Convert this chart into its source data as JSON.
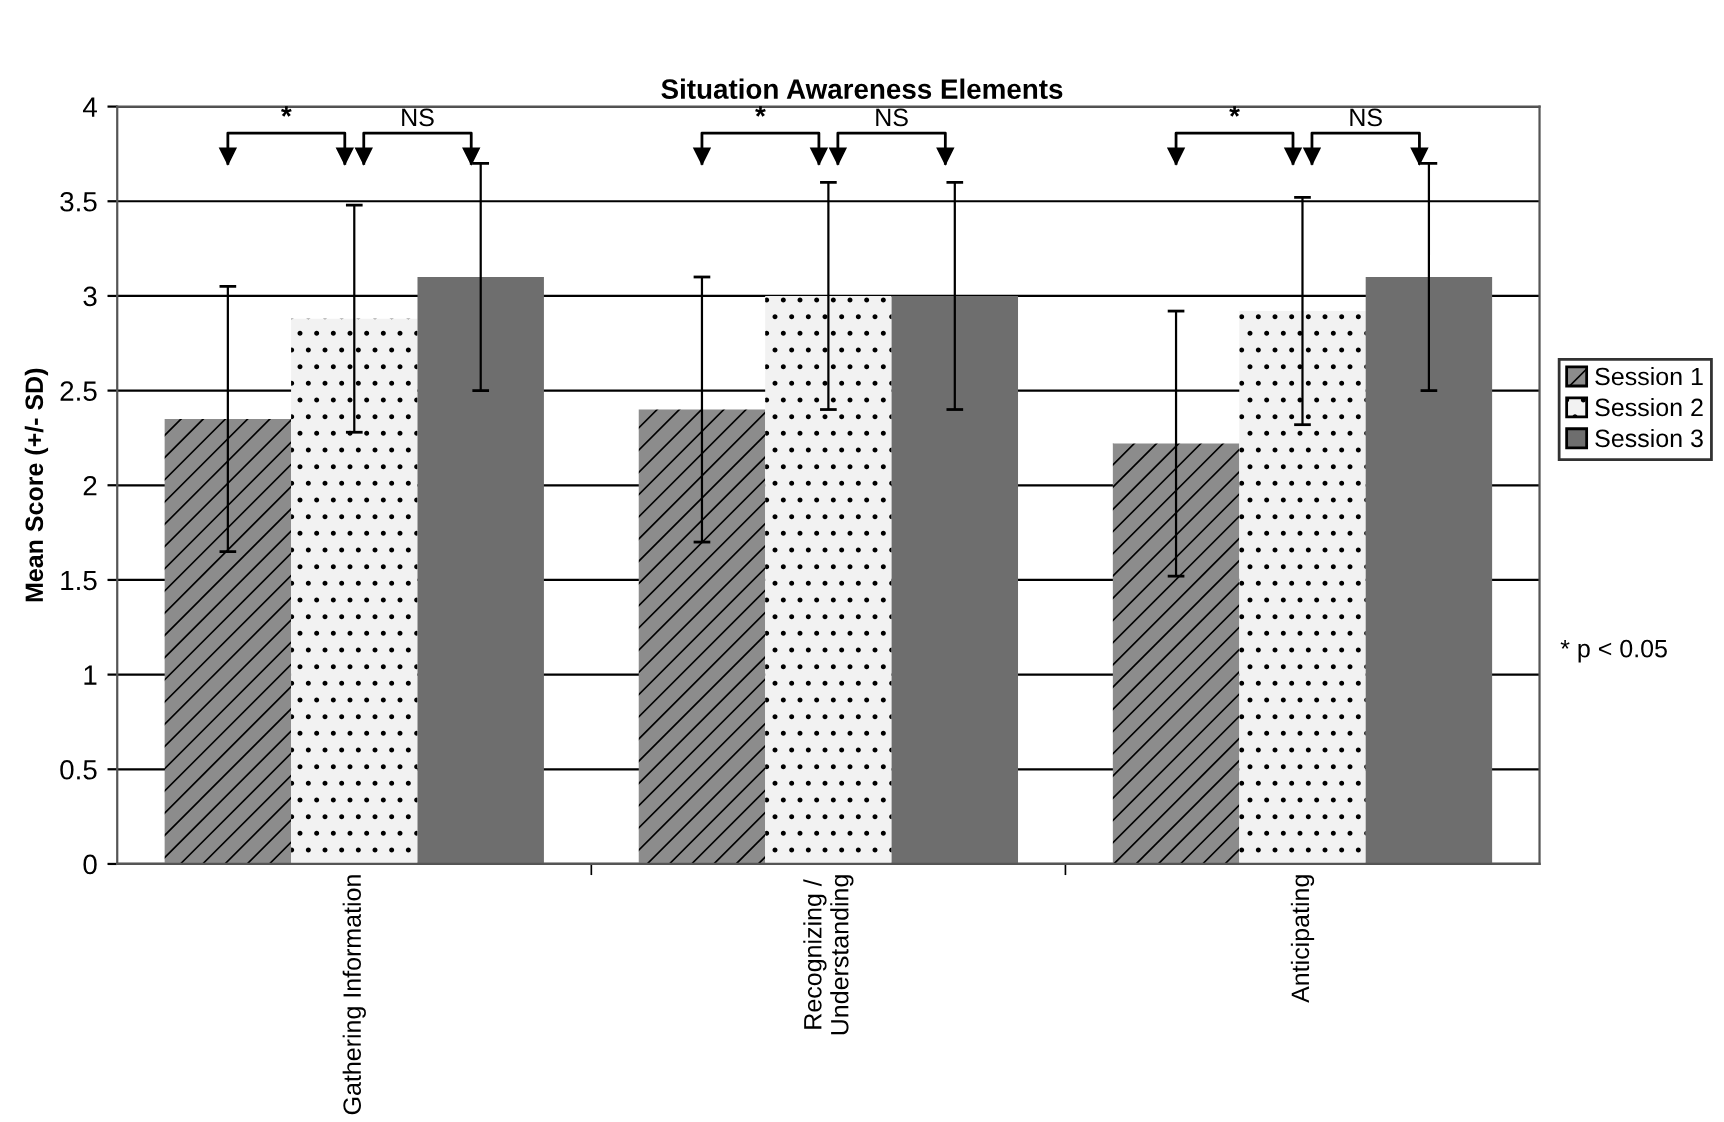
{
  "chart_data": {
    "type": "bar",
    "title": "Situation Awareness Elements",
    "ylabel": "Mean Score (+/- SD)",
    "categories": [
      "Gathering Information",
      "Recognizing /\nUnderstanding",
      "Anticipating"
    ],
    "series": [
      {
        "name": "Session 1",
        "color": "#8c8c8c",
        "values": [
          2.35,
          2.4,
          2.22
        ],
        "errors": [
          0.7,
          0.7,
          0.7
        ]
      },
      {
        "name": "Session 2",
        "color": "#f2f2f2",
        "values": [
          2.88,
          3.0,
          2.92
        ],
        "errors": [
          0.6,
          0.6,
          0.6
        ]
      },
      {
        "name": "Session 3",
        "color": "#6e6e6e",
        "values": [
          3.1,
          3.0,
          3.1
        ],
        "errors": [
          0.6,
          0.6,
          0.6
        ]
      }
    ],
    "ylim": [
      0,
      4
    ],
    "yticks": [
      0,
      0.5,
      1,
      1.5,
      2,
      2.5,
      3,
      3.5,
      4
    ],
    "grid": "y",
    "legend": "right",
    "annotations": [
      "*",
      "NS",
      "*",
      "NS",
      "*",
      "NS",
      "* p < 0.05"
    ]
  }
}
